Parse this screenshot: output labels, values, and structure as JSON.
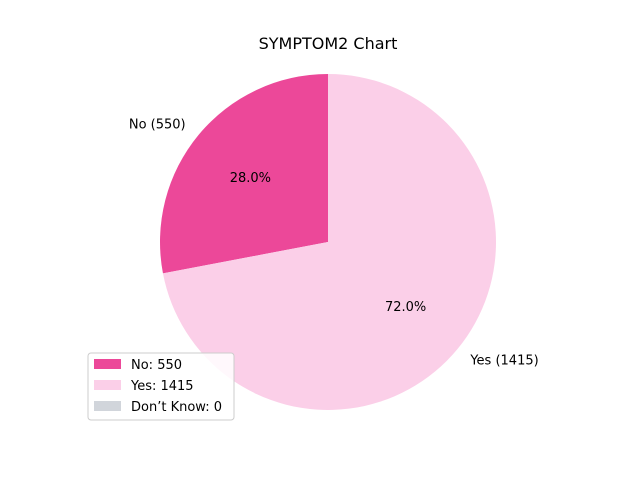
{
  "chart_data": {
    "type": "pie",
    "title": "SYMPTOM2 Chart",
    "slices": [
      {
        "label": "No",
        "value": 550,
        "outer_label": "No (550)",
        "pct_label": "28.0%",
        "legend_label": "No: 550",
        "color": "#ec4899"
      },
      {
        "label": "Yes",
        "value": 1415,
        "outer_label": "Yes (1415)",
        "pct_label": "72.0%",
        "legend_label": "Yes: 1415",
        "color": "#fbcfe8"
      },
      {
        "label": "Don’t Know",
        "value": 0,
        "outer_label": "",
        "pct_label": "",
        "legend_label": "Don’t Know: 0",
        "color": "#d1d5db"
      }
    ],
    "legend_position": "lower-left",
    "start_angle": 90,
    "direction": "counterclockwise"
  }
}
